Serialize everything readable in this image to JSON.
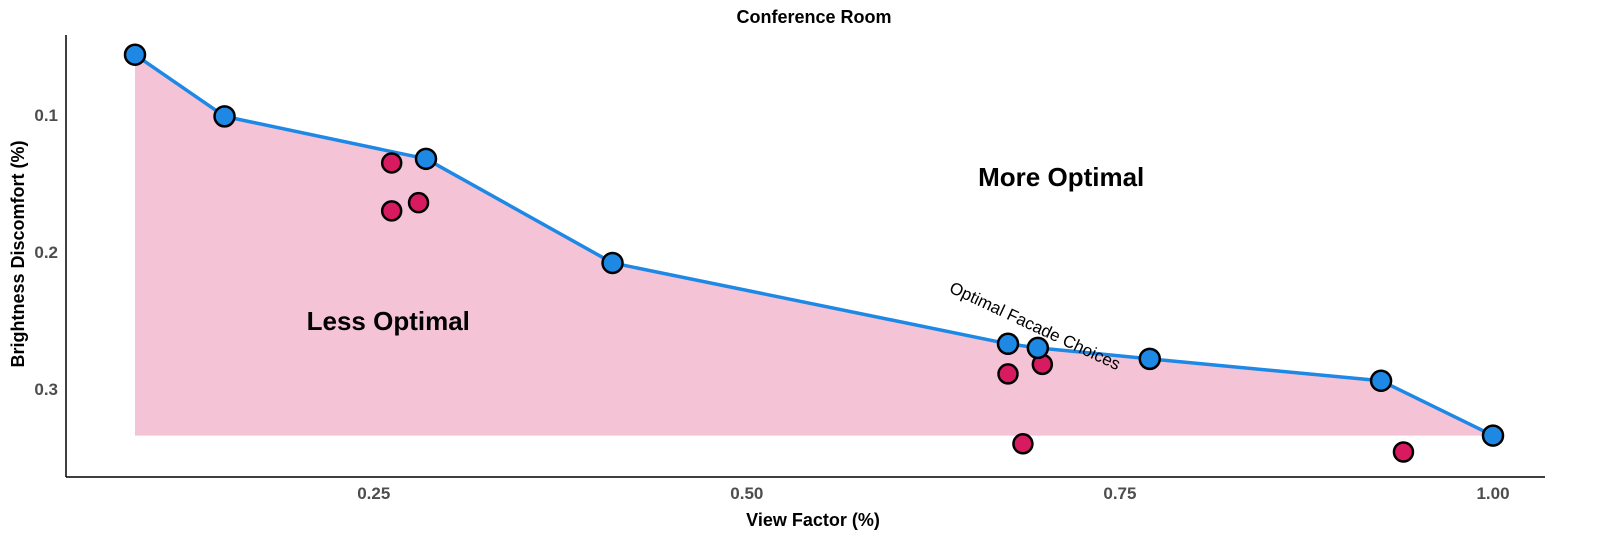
{
  "chart_data": {
    "type": "scatter",
    "title": "Conference Room",
    "xlabel": "View Factor (%)",
    "ylabel": "Brightness Discomfort (%)",
    "xlim": [
      0.0,
      1.0
    ],
    "ylim": [
      0.05,
      0.35
    ],
    "y_reversed": true,
    "x_ticks": [
      0.25,
      0.5,
      0.75,
      1.0
    ],
    "x_tick_labels": [
      "0.25",
      "0.50",
      "0.75",
      "1.00"
    ],
    "y_ticks": [
      0.1,
      0.2,
      0.3
    ],
    "y_tick_labels": [
      "0.1",
      "0.2",
      "0.3"
    ],
    "grid": false,
    "colors": {
      "optimal": "#1e88e5",
      "non_optimal": "#d81b60",
      "fill": "#f4c4d6",
      "frontier_line": "#1e88e5"
    },
    "series": [
      {
        "role": "optimal",
        "points": [
          {
            "x": 0.09,
            "y": 0.056
          },
          {
            "x": 0.15,
            "y": 0.101
          },
          {
            "x": 0.285,
            "y": 0.132
          },
          {
            "x": 0.41,
            "y": 0.208
          },
          {
            "x": 0.675,
            "y": 0.267
          },
          {
            "x": 0.695,
            "y": 0.27
          },
          {
            "x": 0.77,
            "y": 0.278
          },
          {
            "x": 0.925,
            "y": 0.294
          },
          {
            "x": 1.0,
            "y": 0.334
          }
        ]
      },
      {
        "role": "non_optimal",
        "points": [
          {
            "x": 0.262,
            "y": 0.135
          },
          {
            "x": 0.262,
            "y": 0.17
          },
          {
            "x": 0.28,
            "y": 0.164
          },
          {
            "x": 0.675,
            "y": 0.289
          },
          {
            "x": 0.698,
            "y": 0.282
          },
          {
            "x": 0.685,
            "y": 0.34
          },
          {
            "x": 0.94,
            "y": 0.346
          }
        ]
      }
    ],
    "annotations": [
      {
        "text": "More Optimal",
        "x": 0.655,
        "y": 0.152
      },
      {
        "text": "Less Optimal",
        "x": 0.205,
        "y": 0.257
      },
      {
        "text": "Optimal Facade Choices",
        "x": 0.635,
        "y": 0.229
      }
    ]
  }
}
